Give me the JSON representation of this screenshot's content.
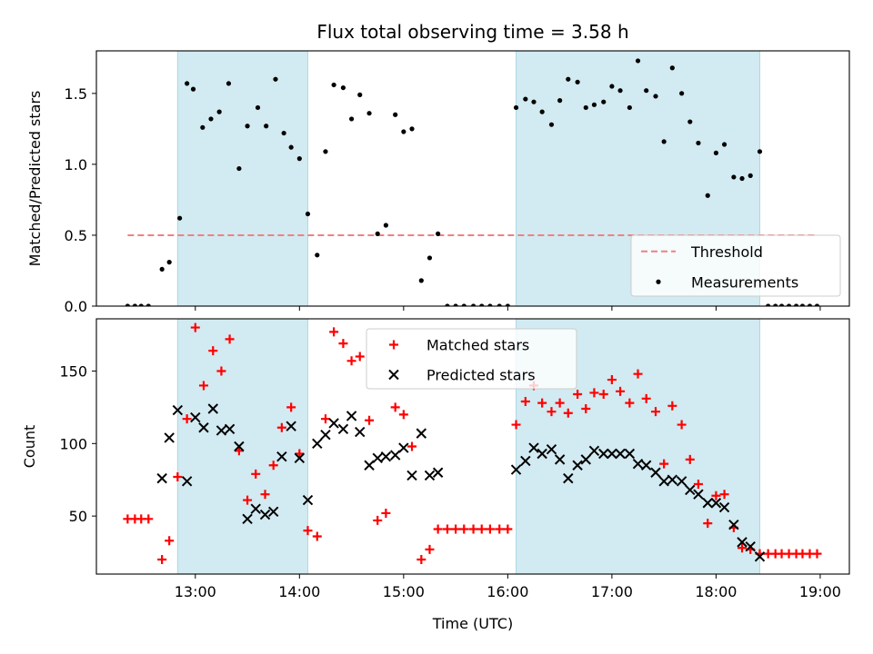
{
  "chart_data": {
    "title": "Flux total observing time = 3.58 h",
    "xlabel": "Time (UTC)",
    "x_unit": "hours UTC",
    "x_ticks": [
      {
        "value": 13,
        "label": "13:00"
      },
      {
        "value": 14,
        "label": "14:00"
      },
      {
        "value": 15,
        "label": "15:00"
      },
      {
        "value": 16,
        "label": "16:00"
      },
      {
        "value": 17,
        "label": "17:00"
      },
      {
        "value": 18,
        "label": "18:00"
      },
      {
        "value": 19,
        "label": "19:00"
      }
    ],
    "xlim": [
      12.05,
      19.28
    ],
    "observing_windows": [
      [
        12.83,
        14.08
      ],
      [
        16.08,
        18.42
      ]
    ],
    "window_color": "#add8e6",
    "panels": [
      {
        "type": "scatter",
        "ylabel": "Matched/Predicted stars",
        "ylim": [
          0.0,
          1.8
        ],
        "y_ticks": [
          0.0,
          0.5,
          1.0,
          1.5
        ],
        "legend_position": "lower-right",
        "threshold": {
          "name": "Threshold",
          "value": 0.5,
          "x_range": [
            12.35,
            18.97
          ],
          "color": "#f08080",
          "style": "dashed"
        },
        "series": [
          {
            "name": "Measurements",
            "marker": "dot",
            "color": "#000000",
            "points": [
              [
                12.35,
                0.0
              ],
              [
                12.42,
                0.0
              ],
              [
                12.48,
                0.0
              ],
              [
                12.55,
                0.0
              ],
              [
                12.68,
                0.26
              ],
              [
                12.75,
                0.31
              ],
              [
                12.85,
                0.62
              ],
              [
                12.92,
                1.57
              ],
              [
                12.98,
                1.53
              ],
              [
                13.07,
                1.26
              ],
              [
                13.15,
                1.32
              ],
              [
                13.23,
                1.37
              ],
              [
                13.32,
                1.57
              ],
              [
                13.42,
                0.97
              ],
              [
                13.5,
                1.27
              ],
              [
                13.6,
                1.4
              ],
              [
                13.68,
                1.27
              ],
              [
                13.77,
                1.6
              ],
              [
                13.85,
                1.22
              ],
              [
                13.92,
                1.12
              ],
              [
                14.0,
                1.04
              ],
              [
                14.08,
                0.65
              ],
              [
                14.17,
                0.36
              ],
              [
                14.25,
                1.09
              ],
              [
                14.33,
                1.56
              ],
              [
                14.42,
                1.54
              ],
              [
                14.5,
                1.32
              ],
              [
                14.58,
                1.49
              ],
              [
                14.67,
                1.36
              ],
              [
                14.75,
                0.51
              ],
              [
                14.83,
                0.57
              ],
              [
                14.92,
                1.35
              ],
              [
                15.0,
                1.23
              ],
              [
                15.08,
                1.25
              ],
              [
                15.17,
                0.18
              ],
              [
                15.25,
                0.34
              ],
              [
                15.33,
                0.51
              ],
              [
                15.42,
                0.0
              ],
              [
                15.5,
                0.0
              ],
              [
                15.58,
                0.0
              ],
              [
                15.67,
                0.0
              ],
              [
                15.75,
                0.0
              ],
              [
                15.83,
                0.0
              ],
              [
                15.92,
                0.0
              ],
              [
                16.0,
                0.0
              ],
              [
                16.08,
                1.4
              ],
              [
                16.17,
                1.46
              ],
              [
                16.25,
                1.44
              ],
              [
                16.33,
                1.37
              ],
              [
                16.42,
                1.28
              ],
              [
                16.5,
                1.45
              ],
              [
                16.58,
                1.6
              ],
              [
                16.67,
                1.58
              ],
              [
                16.75,
                1.4
              ],
              [
                16.83,
                1.42
              ],
              [
                16.92,
                1.44
              ],
              [
                17.0,
                1.55
              ],
              [
                17.08,
                1.52
              ],
              [
                17.17,
                1.4
              ],
              [
                17.25,
                1.73
              ],
              [
                17.33,
                1.52
              ],
              [
                17.42,
                1.48
              ],
              [
                17.5,
                1.16
              ],
              [
                17.58,
                1.68
              ],
              [
                17.67,
                1.5
              ],
              [
                17.75,
                1.3
              ],
              [
                17.83,
                1.15
              ],
              [
                17.92,
                0.78
              ],
              [
                18.0,
                1.08
              ],
              [
                18.08,
                1.14
              ],
              [
                18.17,
                0.91
              ],
              [
                18.25,
                0.9
              ],
              [
                18.33,
                0.92
              ],
              [
                18.42,
                1.09
              ],
              [
                18.5,
                0.0
              ],
              [
                18.57,
                0.0
              ],
              [
                18.63,
                0.0
              ],
              [
                18.7,
                0.0
              ],
              [
                18.77,
                0.0
              ],
              [
                18.83,
                0.0
              ],
              [
                18.9,
                0.0
              ],
              [
                18.97,
                0.0
              ]
            ]
          }
        ]
      },
      {
        "type": "scatter",
        "ylabel": "Count",
        "ylim": [
          10,
          186
        ],
        "y_ticks": [
          50,
          100,
          150
        ],
        "legend_position": "upper-center",
        "series": [
          {
            "name": "Matched stars",
            "marker": "plus",
            "color": "#ff0000",
            "points": [
              [
                12.35,
                48
              ],
              [
                12.42,
                48
              ],
              [
                12.48,
                48
              ],
              [
                12.55,
                48
              ],
              [
                12.68,
                20
              ],
              [
                12.75,
                33
              ],
              [
                12.83,
                77
              ],
              [
                12.92,
                117
              ],
              [
                13.0,
                180
              ],
              [
                13.08,
                140
              ],
              [
                13.17,
                164
              ],
              [
                13.25,
                150
              ],
              [
                13.33,
                172
              ],
              [
                13.42,
                95
              ],
              [
                13.5,
                61
              ],
              [
                13.58,
                79
              ],
              [
                13.67,
                65
              ],
              [
                13.75,
                85
              ],
              [
                13.83,
                111
              ],
              [
                13.92,
                125
              ],
              [
                14.0,
                93
              ],
              [
                14.08,
                40
              ],
              [
                14.17,
                36
              ],
              [
                14.25,
                117
              ],
              [
                14.33,
                177
              ],
              [
                14.42,
                169
              ],
              [
                14.5,
                157
              ],
              [
                14.58,
                160
              ],
              [
                14.67,
                116
              ],
              [
                14.75,
                47
              ],
              [
                14.83,
                52
              ],
              [
                14.92,
                125
              ],
              [
                15.0,
                120
              ],
              [
                15.08,
                98
              ],
              [
                15.17,
                20
              ],
              [
                15.25,
                27
              ],
              [
                15.33,
                41
              ],
              [
                15.42,
                41
              ],
              [
                15.5,
                41
              ],
              [
                15.58,
                41
              ],
              [
                15.67,
                41
              ],
              [
                15.75,
                41
              ],
              [
                15.83,
                41
              ],
              [
                15.92,
                41
              ],
              [
                16.0,
                41
              ],
              [
                16.08,
                113
              ],
              [
                16.17,
                129
              ],
              [
                16.25,
                140
              ],
              [
                16.33,
                128
              ],
              [
                16.42,
                122
              ],
              [
                16.5,
                128
              ],
              [
                16.58,
                121
              ],
              [
                16.67,
                134
              ],
              [
                16.75,
                124
              ],
              [
                16.83,
                135
              ],
              [
                16.92,
                134
              ],
              [
                17.0,
                144
              ],
              [
                17.08,
                136
              ],
              [
                17.17,
                128
              ],
              [
                17.25,
                148
              ],
              [
                17.33,
                131
              ],
              [
                17.42,
                122
              ],
              [
                17.5,
                86
              ],
              [
                17.58,
                126
              ],
              [
                17.67,
                113
              ],
              [
                17.75,
                89
              ],
              [
                17.83,
                72
              ],
              [
                17.92,
                45
              ],
              [
                18.0,
                64
              ],
              [
                18.08,
                65
              ],
              [
                18.17,
                42
              ],
              [
                18.25,
                28
              ],
              [
                18.33,
                27
              ],
              [
                18.42,
                24
              ],
              [
                18.5,
                24
              ],
              [
                18.57,
                24
              ],
              [
                18.63,
                24
              ],
              [
                18.7,
                24
              ],
              [
                18.77,
                24
              ],
              [
                18.83,
                24
              ],
              [
                18.9,
                24
              ],
              [
                18.97,
                24
              ]
            ]
          },
          {
            "name": "Predicted stars",
            "marker": "x",
            "color": "#000000",
            "points": [
              [
                12.68,
                76
              ],
              [
                12.75,
                104
              ],
              [
                12.83,
                123
              ],
              [
                12.92,
                74
              ],
              [
                13.0,
                118
              ],
              [
                13.08,
                111
              ],
              [
                13.17,
                124
              ],
              [
                13.25,
                109
              ],
              [
                13.33,
                110
              ],
              [
                13.42,
                98
              ],
              [
                13.5,
                48
              ],
              [
                13.58,
                55
              ],
              [
                13.67,
                51
              ],
              [
                13.75,
                53
              ],
              [
                13.83,
                91
              ],
              [
                13.92,
                112
              ],
              [
                14.0,
                90
              ],
              [
                14.08,
                61
              ],
              [
                14.17,
                100
              ],
              [
                14.25,
                106
              ],
              [
                14.33,
                114
              ],
              [
                14.42,
                110
              ],
              [
                14.5,
                119
              ],
              [
                14.58,
                108
              ],
              [
                14.67,
                85
              ],
              [
                14.75,
                90
              ],
              [
                14.83,
                91
              ],
              [
                14.92,
                92
              ],
              [
                15.0,
                97
              ],
              [
                15.08,
                78
              ],
              [
                15.17,
                107
              ],
              [
                15.25,
                78
              ],
              [
                15.33,
                80
              ],
              [
                16.08,
                82
              ],
              [
                16.17,
                88
              ],
              [
                16.25,
                97
              ],
              [
                16.33,
                93
              ],
              [
                16.42,
                96
              ],
              [
                16.5,
                89
              ],
              [
                16.58,
                76
              ],
              [
                16.67,
                85
              ],
              [
                16.75,
                89
              ],
              [
                16.83,
                95
              ],
              [
                16.92,
                93
              ],
              [
                17.0,
                93
              ],
              [
                17.08,
                93
              ],
              [
                17.17,
                93
              ],
              [
                17.25,
                86
              ],
              [
                17.33,
                85
              ],
              [
                17.42,
                80
              ],
              [
                17.5,
                74
              ],
              [
                17.58,
                75
              ],
              [
                17.67,
                74
              ],
              [
                17.75,
                68
              ],
              [
                17.83,
                65
              ],
              [
                17.92,
                59
              ],
              [
                18.0,
                59
              ],
              [
                18.08,
                56
              ],
              [
                18.17,
                44
              ],
              [
                18.25,
                32
              ],
              [
                18.33,
                29
              ],
              [
                18.42,
                22
              ]
            ]
          }
        ]
      }
    ]
  }
}
